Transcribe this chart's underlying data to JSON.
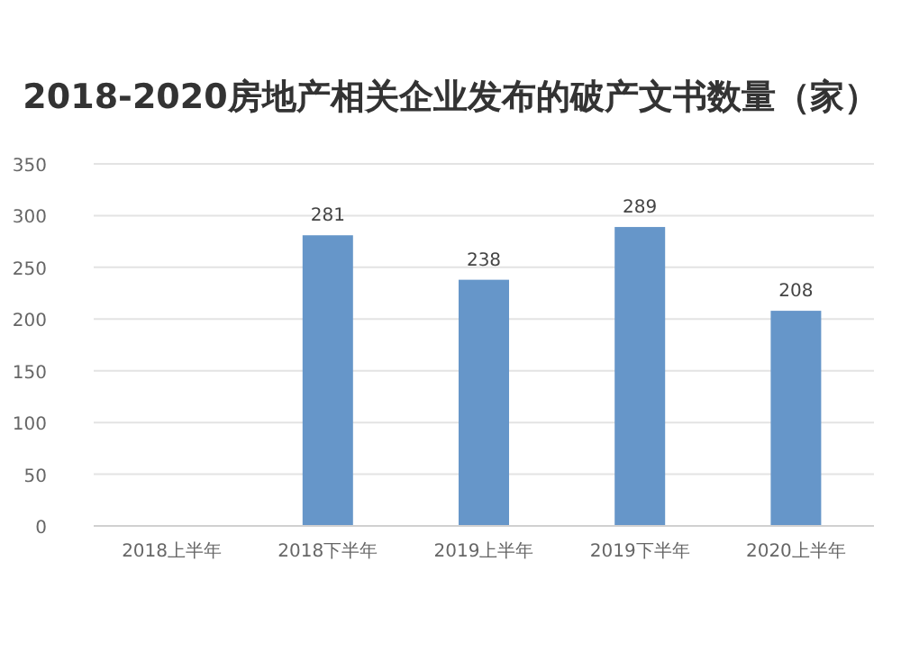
{
  "chart_data": {
    "type": "bar",
    "title": "2018-2020房地产相关企业发布的破产文书数量（家）",
    "categories": [
      "2018上半年",
      "2018下半年",
      "2019上半年",
      "2019下半年",
      "2020上半年"
    ],
    "values": [
      null,
      281,
      238,
      289,
      208
    ],
    "color": "#6696c9",
    "ylim": [
      0,
      350
    ],
    "yticks": [
      0,
      50,
      100,
      150,
      200,
      250,
      300,
      350
    ],
    "grid": "y",
    "data_labels": true
  }
}
